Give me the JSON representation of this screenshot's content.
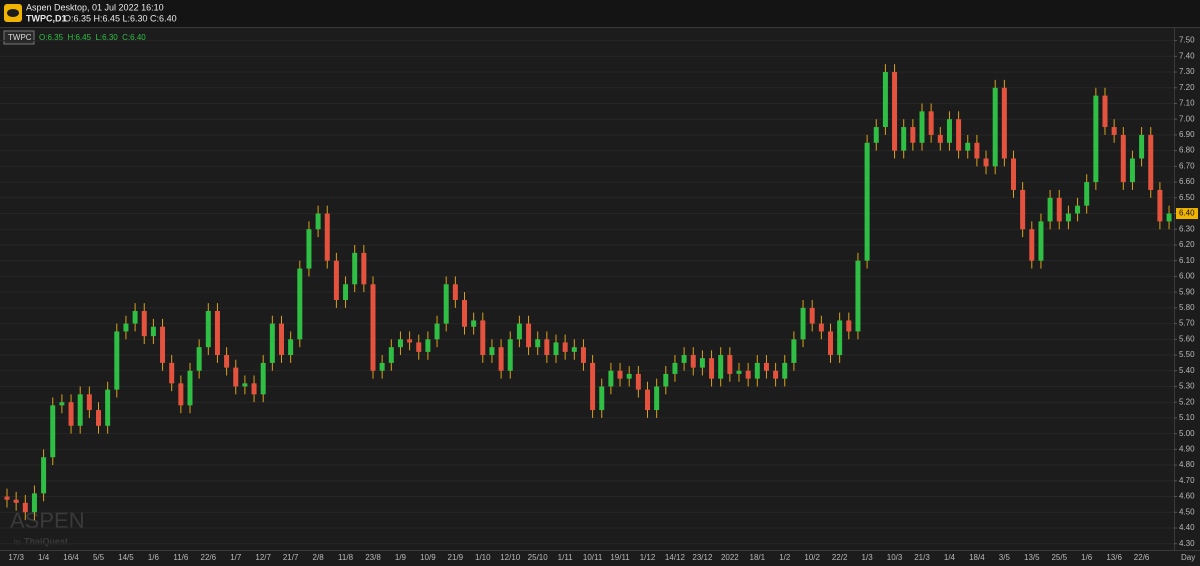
{
  "header": {
    "title": "Aspen Desktop, 01 Jul 2022 16:10",
    "symbol": "TWPC,D1",
    "ohlc": "O:6.35 H:6.45 L:6.30 C:6.40"
  },
  "watermark": {
    "title": "ASPEN",
    "by": "by",
    "brand": "ThaiQuest"
  },
  "chart_data": {
    "type": "candlestick",
    "legend": {
      "symbol": "TWPC",
      "ohlc": "O:6.35  H:6.45  L:6.30  C:6.40"
    },
    "categories": [
      null,
      "17/3",
      null,
      null,
      "1/4",
      null,
      null,
      "16/4",
      null,
      null,
      "5/5",
      null,
      null,
      "14/5",
      null,
      null,
      "1/6",
      null,
      null,
      "11/6",
      null,
      null,
      "22/6",
      null,
      null,
      "1/7",
      null,
      null,
      "12/7",
      null,
      null,
      "21/7",
      null,
      null,
      "2/8",
      null,
      null,
      "11/8",
      null,
      null,
      "23/8",
      null,
      null,
      "1/9",
      null,
      null,
      "10/9",
      null,
      null,
      "21/9",
      null,
      null,
      "1/10",
      null,
      null,
      "12/10",
      null,
      null,
      "25/10",
      null,
      null,
      "1/11",
      null,
      null,
      "10/11",
      null,
      null,
      "19/11",
      null,
      null,
      "1/12",
      null,
      null,
      "14/12",
      null,
      null,
      "23/12",
      null,
      null,
      "2022",
      null,
      null,
      "18/1",
      null,
      null,
      "1/2",
      null,
      null,
      "10/2",
      null,
      null,
      "22/2",
      null,
      null,
      "1/3",
      null,
      null,
      "10/3",
      null,
      null,
      "21/3",
      null,
      null,
      "1/4",
      null,
      null,
      "18/4",
      null,
      null,
      "3/5",
      null,
      null,
      "13/5",
      null,
      null,
      "25/5",
      null,
      null,
      "1/6",
      null,
      null,
      "13/6",
      null,
      null,
      "22/6",
      null,
      null,
      null
    ],
    "open": [
      4.6,
      4.58,
      4.56,
      4.5,
      4.62,
      4.85,
      5.18,
      5.2,
      5.05,
      5.25,
      5.15,
      5.05,
      5.28,
      5.65,
      5.7,
      5.78,
      5.62,
      5.68,
      5.45,
      5.32,
      5.18,
      5.4,
      5.55,
      5.78,
      5.5,
      5.42,
      5.3,
      5.32,
      5.25,
      5.45,
      5.7,
      5.5,
      5.6,
      6.05,
      6.3,
      6.4,
      6.1,
      5.85,
      5.95,
      6.15,
      5.95,
      5.4,
      5.45,
      5.55,
      5.6,
      5.58,
      5.52,
      5.6,
      5.7,
      5.95,
      5.85,
      5.68,
      5.72,
      5.5,
      5.55,
      5.4,
      5.6,
      5.7,
      5.55,
      5.6,
      5.5,
      5.58,
      5.52,
      5.55,
      5.45,
      5.15,
      5.3,
      5.4,
      5.35,
      5.38,
      5.28,
      5.15,
      5.3,
      5.38,
      5.45,
      5.5,
      5.42,
      5.48,
      5.35,
      5.5,
      5.38,
      5.4,
      5.35,
      5.45,
      5.4,
      5.35,
      5.45,
      5.6,
      5.8,
      5.7,
      5.65,
      5.5,
      5.72,
      5.65,
      6.1,
      6.85,
      6.95,
      7.3,
      6.8,
      6.95,
      6.85,
      7.05,
      6.9,
      6.85,
      7.0,
      6.8,
      6.85,
      6.75,
      6.7,
      7.2,
      6.75,
      6.55,
      6.3,
      6.1,
      6.35,
      6.5,
      6.35,
      6.4,
      6.45,
      6.6,
      7.15,
      6.95,
      6.9,
      6.6,
      6.75,
      6.9,
      6.55,
      6.35
    ],
    "high": [
      4.65,
      4.63,
      4.61,
      4.67,
      4.9,
      5.23,
      5.25,
      5.25,
      5.3,
      5.3,
      5.2,
      5.33,
      5.7,
      5.75,
      5.83,
      5.83,
      5.73,
      5.73,
      5.5,
      5.37,
      5.45,
      5.6,
      5.83,
      5.83,
      5.55,
      5.47,
      5.37,
      5.37,
      5.5,
      5.75,
      5.75,
      5.65,
      6.1,
      6.35,
      6.45,
      6.45,
      6.15,
      6.0,
      6.2,
      6.2,
      6.0,
      5.5,
      5.6,
      5.65,
      5.65,
      5.63,
      5.65,
      5.75,
      6.0,
      6.0,
      5.9,
      5.77,
      5.77,
      5.6,
      5.6,
      5.65,
      5.75,
      5.75,
      5.65,
      5.65,
      5.63,
      5.63,
      5.6,
      5.6,
      5.5,
      5.35,
      5.45,
      5.45,
      5.43,
      5.43,
      5.33,
      5.35,
      5.43,
      5.5,
      5.55,
      5.55,
      5.53,
      5.53,
      5.55,
      5.55,
      5.45,
      5.45,
      5.5,
      5.5,
      5.45,
      5.5,
      5.65,
      5.85,
      5.85,
      5.75,
      5.7,
      5.77,
      5.77,
      6.15,
      6.9,
      7.0,
      7.35,
      7.35,
      7.0,
      7.0,
      7.1,
      7.1,
      6.95,
      7.05,
      7.05,
      6.9,
      6.9,
      6.8,
      7.25,
      7.25,
      6.8,
      6.6,
      6.35,
      6.4,
      6.55,
      6.55,
      6.45,
      6.5,
      6.65,
      7.2,
      7.2,
      7.0,
      6.95,
      6.8,
      6.95,
      6.95,
      6.6,
      6.45
    ],
    "low": [
      4.53,
      4.51,
      4.45,
      4.45,
      4.57,
      4.8,
      5.13,
      5.0,
      5.0,
      5.1,
      5.0,
      5.0,
      5.23,
      5.6,
      5.65,
      5.57,
      5.57,
      5.4,
      5.27,
      5.13,
      5.13,
      5.35,
      5.5,
      5.45,
      5.37,
      5.25,
      5.25,
      5.2,
      5.2,
      5.4,
      5.45,
      5.45,
      5.55,
      6.0,
      6.25,
      6.05,
      5.8,
      5.8,
      5.9,
      5.9,
      5.35,
      5.35,
      5.4,
      5.5,
      5.53,
      5.47,
      5.47,
      5.55,
      5.65,
      5.8,
      5.63,
      5.63,
      5.45,
      5.45,
      5.35,
      5.35,
      5.55,
      5.5,
      5.5,
      5.45,
      5.45,
      5.47,
      5.47,
      5.4,
      5.1,
      5.1,
      5.25,
      5.3,
      5.3,
      5.23,
      5.1,
      5.1,
      5.25,
      5.33,
      5.4,
      5.37,
      5.37,
      5.3,
      5.3,
      5.33,
      5.33,
      5.3,
      5.3,
      5.35,
      5.3,
      5.3,
      5.4,
      5.55,
      5.65,
      5.6,
      5.45,
      5.45,
      5.6,
      5.6,
      6.05,
      6.8,
      6.9,
      6.75,
      6.75,
      6.8,
      6.8,
      6.85,
      6.8,
      6.8,
      6.75,
      6.75,
      6.7,
      6.65,
      6.65,
      6.7,
      6.5,
      6.25,
      6.05,
      6.05,
      6.3,
      6.3,
      6.3,
      6.35,
      6.4,
      6.55,
      6.9,
      6.85,
      6.55,
      6.55,
      6.7,
      6.5,
      6.3,
      6.3
    ],
    "close": [
      4.58,
      4.56,
      4.5,
      4.62,
      4.85,
      5.18,
      5.2,
      5.05,
      5.25,
      5.15,
      5.05,
      5.28,
      5.65,
      5.7,
      5.78,
      5.62,
      5.68,
      5.45,
      5.32,
      5.18,
      5.4,
      5.55,
      5.78,
      5.5,
      5.42,
      5.3,
      5.32,
      5.25,
      5.45,
      5.7,
      5.5,
      5.6,
      6.05,
      6.3,
      6.4,
      6.1,
      5.85,
      5.95,
      6.15,
      5.95,
      5.4,
      5.45,
      5.55,
      5.6,
      5.58,
      5.52,
      5.6,
      5.7,
      5.95,
      5.85,
      5.68,
      5.72,
      5.5,
      5.55,
      5.4,
      5.6,
      5.7,
      5.55,
      5.6,
      5.5,
      5.58,
      5.52,
      5.55,
      5.45,
      5.15,
      5.3,
      5.4,
      5.35,
      5.38,
      5.28,
      5.15,
      5.3,
      5.38,
      5.45,
      5.5,
      5.42,
      5.48,
      5.35,
      5.5,
      5.38,
      5.4,
      5.35,
      5.45,
      5.4,
      5.35,
      5.45,
      5.6,
      5.8,
      5.7,
      5.65,
      5.5,
      5.72,
      5.65,
      6.1,
      6.85,
      6.95,
      7.3,
      6.8,
      6.95,
      6.85,
      7.05,
      6.9,
      6.85,
      7.0,
      6.8,
      6.85,
      6.75,
      6.7,
      7.2,
      6.75,
      6.55,
      6.3,
      6.1,
      6.35,
      6.5,
      6.35,
      6.4,
      6.45,
      6.6,
      7.15,
      6.95,
      6.9,
      6.6,
      6.75,
      6.9,
      6.55,
      6.35,
      6.4
    ],
    "up_color": "#2fbf45",
    "down_color": "#e5533f",
    "wick_color": "#d9a21b",
    "ylim": [
      4.26,
      7.58
    ],
    "yticks": [
      {
        "value": 7.5,
        "label": "7.50"
      },
      {
        "value": 7.4,
        "label": "7.40"
      },
      {
        "value": 7.3,
        "label": "7.30"
      },
      {
        "value": 7.2,
        "label": "7.20"
      },
      {
        "value": 7.1,
        "label": "7.10"
      },
      {
        "value": 7.0,
        "label": "7.00"
      },
      {
        "value": 6.9,
        "label": "6.90"
      },
      {
        "value": 6.8,
        "label": "6.80"
      },
      {
        "value": 6.7,
        "label": "6.70"
      },
      {
        "value": 6.6,
        "label": "6.60"
      },
      {
        "value": 6.5,
        "label": "6.50"
      },
      {
        "value": 6.4,
        "label": "6.40"
      },
      {
        "value": 6.3,
        "label": "6.30"
      },
      {
        "value": 6.2,
        "label": "6.20"
      },
      {
        "value": 6.1,
        "label": "6.10"
      },
      {
        "value": 6.0,
        "label": "6.00"
      },
      {
        "value": 5.9,
        "label": "5.90"
      },
      {
        "value": 5.8,
        "label": "5.80"
      },
      {
        "value": 5.7,
        "label": "5.70"
      },
      {
        "value": 5.6,
        "label": "5.60"
      },
      {
        "value": 5.5,
        "label": "5.50"
      },
      {
        "value": 5.4,
        "label": "5.40"
      },
      {
        "value": 5.3,
        "label": "5.30"
      },
      {
        "value": 5.2,
        "label": "5.20"
      },
      {
        "value": 5.1,
        "label": "5.10"
      },
      {
        "value": 5.0,
        "label": "5.00"
      },
      {
        "value": 4.9,
        "label": "4.90"
      },
      {
        "value": 4.8,
        "label": "4.80"
      },
      {
        "value": 4.7,
        "label": "4.70"
      },
      {
        "value": 4.6,
        "label": "4.60"
      },
      {
        "value": 4.5,
        "label": "4.50"
      },
      {
        "value": 4.4,
        "label": "4.40"
      },
      {
        "value": 4.3,
        "label": "4.30"
      }
    ],
    "grid": true,
    "last_price": {
      "value": 6.4,
      "label": "6.40"
    },
    "period": "Day"
  }
}
